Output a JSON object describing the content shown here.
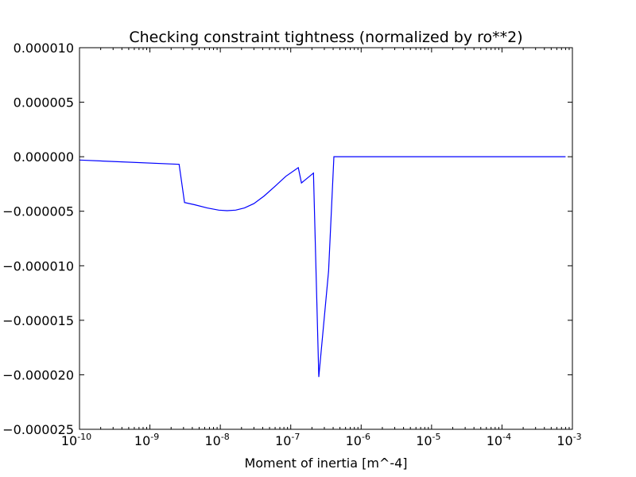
{
  "chart_data": {
    "type": "line",
    "title": "Checking constraint tightness (normalized by ro**2)",
    "xlabel": "Moment of inertia [m^-4]",
    "ylabel": "",
    "x_scale": "log",
    "xlim": [
      1e-10,
      0.001
    ],
    "ylim": [
      -2.5e-05,
      1e-05
    ],
    "grid": false,
    "legend": "none",
    "line_color": "#0000ff",
    "x_ticks": [
      {
        "base": "10",
        "exp": "-10",
        "value": 1e-10
      },
      {
        "base": "10",
        "exp": "-9",
        "value": 1e-09
      },
      {
        "base": "10",
        "exp": "-8",
        "value": 1e-08
      },
      {
        "base": "10",
        "exp": "-7",
        "value": 1e-07
      },
      {
        "base": "10",
        "exp": "-6",
        "value": 1e-06
      },
      {
        "base": "10",
        "exp": "-5",
        "value": 1e-05
      },
      {
        "base": "10",
        "exp": "-4",
        "value": 0.0001
      },
      {
        "base": "10",
        "exp": "-3",
        "value": 0.001
      }
    ],
    "y_ticks": [
      {
        "label": "0.000010",
        "value": 1e-05
      },
      {
        "label": "0.000005",
        "value": 5e-06
      },
      {
        "label": "0.000000",
        "value": 0
      },
      {
        "label": "−0.000005",
        "value": -5e-06
      },
      {
        "label": "−0.000010",
        "value": -1e-05
      },
      {
        "label": "−0.000015",
        "value": -1.5e-05
      },
      {
        "label": "−0.000020",
        "value": -2e-05
      },
      {
        "label": "−0.000025",
        "value": -2.5e-05
      }
    ],
    "series": [
      {
        "x": [
          1e-10,
          2.6e-09,
          3.1e-09,
          4.3e-09,
          6.5e-09,
          9.5e-09,
          1.25e-08,
          1.65e-08,
          2.2e-08,
          3e-08,
          4.2e-08,
          6e-08,
          8.5e-08,
          1.28e-07,
          1.42e-07,
          2.1e-07,
          2.5e-07,
          3.45e-07,
          4.1e-07,
          1e-06,
          1e-05,
          0.0001,
          0.0008
        ],
        "y": [
          -3e-07,
          -7e-07,
          -4.2e-06,
          -4.4e-06,
          -4.7e-06,
          -4.9e-06,
          -4.95e-06,
          -4.9e-06,
          -4.7e-06,
          -4.3e-06,
          -3.6e-06,
          -2.7e-06,
          -1.8e-06,
          -1e-06,
          -2.4e-06,
          -1.5e-06,
          -2.02e-05,
          -1.05e-05,
          0.0,
          0.0,
          0.0,
          0.0,
          0.0
        ]
      }
    ]
  }
}
